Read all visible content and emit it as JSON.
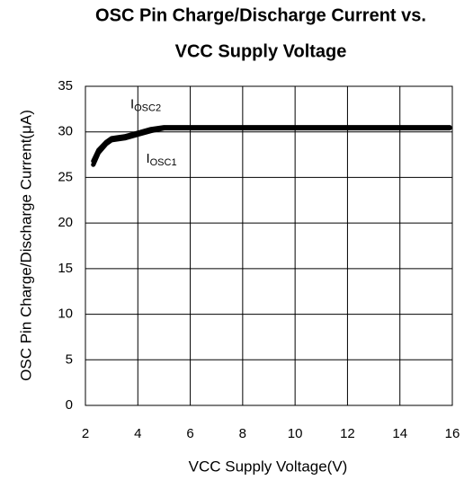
{
  "chart_data": {
    "type": "line",
    "title": [
      "OSC Pin Charge/Discharge Current vs.",
      "VCC Supply Voltage"
    ],
    "xlabel": "VCC Supply Voltage(V)",
    "ylabel": "OSC Pin Charge/Discharge Current(μA)",
    "x": [
      2.3,
      2.5,
      2.8,
      3.0,
      3.5,
      4.0,
      4.5,
      5.0,
      6,
      8,
      10,
      12,
      14,
      15.9
    ],
    "series": [
      {
        "name": "IOSC2",
        "color": "#000000",
        "values": [
          26.8,
          28.0,
          28.9,
          29.3,
          29.5,
          29.9,
          30.3,
          30.5,
          30.5,
          30.5,
          30.5,
          30.5,
          30.5,
          30.5
        ]
      },
      {
        "name": "IOSC1",
        "color": "#000000",
        "values": [
          26.4,
          27.7,
          28.7,
          29.1,
          29.3,
          29.7,
          30.1,
          30.4,
          30.4,
          30.4,
          30.4,
          30.4,
          30.4,
          30.4
        ]
      }
    ],
    "annotations": [
      {
        "text": "I",
        "sub": "OSC2",
        "x": 4.3,
        "y": 33
      },
      {
        "text": "I",
        "sub": "OSC1",
        "x": 4.9,
        "y": 27
      }
    ],
    "xlim": [
      2,
      16
    ],
    "xticks": [
      2,
      4,
      6,
      8,
      10,
      12,
      14,
      16
    ],
    "ylim": [
      0,
      35
    ],
    "yticks": [
      0,
      5,
      10,
      15,
      20,
      25,
      30,
      35
    ],
    "grid": true
  }
}
